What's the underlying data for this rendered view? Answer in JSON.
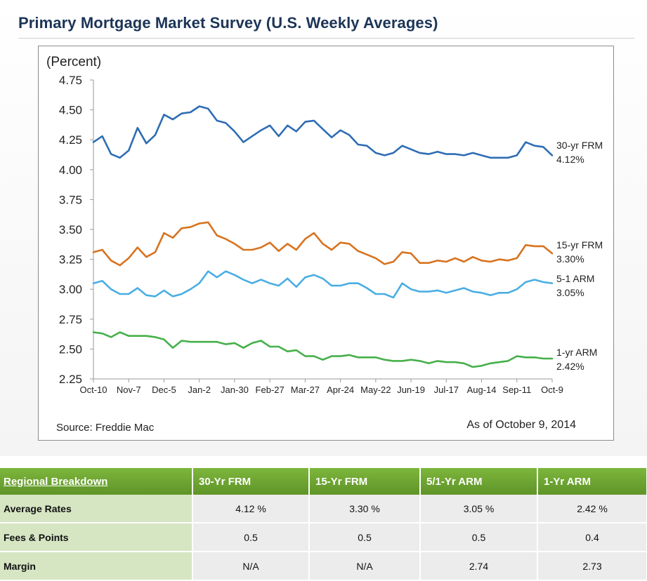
{
  "page": {
    "title": "Primary Mortgage Market Survey (U.S. Weekly Averages)"
  },
  "chart_data": {
    "type": "line",
    "ylabel": "(Percent)",
    "ylim": [
      2.25,
      4.75
    ],
    "yticks": [
      "4.75",
      "4.50",
      "4.25",
      "4.00",
      "3.75",
      "3.50",
      "3.25",
      "3.00",
      "2.75",
      "2.50",
      "2.25"
    ],
    "xticks": [
      "Oct-10",
      "Nov-7",
      "Dec-5",
      "Jan-2",
      "Jan-30",
      "Feb-27",
      "Mar-27",
      "Apr-24",
      "May-22",
      "Jun-19",
      "Jul-17",
      "Aug-14",
      "Sep-11",
      "Oct-9"
    ],
    "x_range": [
      "Oct-10",
      "Oct-9"
    ],
    "source": "Source: Freddie Mac",
    "as_of": "As of October 9, 2014",
    "grid": false,
    "series": [
      {
        "name": "30-yr FRM",
        "end_label": "4.12%",
        "color": "#2e6db4",
        "values": [
          4.23,
          4.28,
          4.13,
          4.1,
          4.16,
          4.35,
          4.22,
          4.29,
          4.46,
          4.42,
          4.47,
          4.48,
          4.53,
          4.51,
          4.41,
          4.39,
          4.32,
          4.23,
          4.28,
          4.33,
          4.37,
          4.28,
          4.37,
          4.32,
          4.4,
          4.41,
          4.34,
          4.27,
          4.33,
          4.29,
          4.21,
          4.2,
          4.14,
          4.12,
          4.14,
          4.2,
          4.17,
          4.14,
          4.13,
          4.15,
          4.13,
          4.13,
          4.12,
          4.14,
          4.12,
          4.1,
          4.1,
          4.1,
          4.12,
          4.23,
          4.2,
          4.19,
          4.12
        ]
      },
      {
        "name": "15-yr FRM",
        "end_label": "3.30%",
        "color": "#d8731f",
        "values": [
          3.31,
          3.33,
          3.24,
          3.2,
          3.26,
          3.35,
          3.27,
          3.31,
          3.47,
          3.43,
          3.51,
          3.52,
          3.55,
          3.56,
          3.45,
          3.42,
          3.38,
          3.33,
          3.33,
          3.35,
          3.39,
          3.32,
          3.38,
          3.33,
          3.42,
          3.47,
          3.38,
          3.33,
          3.39,
          3.38,
          3.32,
          3.29,
          3.26,
          3.21,
          3.23,
          3.31,
          3.3,
          3.22,
          3.22,
          3.24,
          3.23,
          3.26,
          3.23,
          3.27,
          3.24,
          3.23,
          3.25,
          3.24,
          3.26,
          3.37,
          3.36,
          3.36,
          3.3
        ]
      },
      {
        "name": "5-1 ARM",
        "end_label": "3.05%",
        "color": "#4aaee3",
        "values": [
          3.05,
          3.07,
          3.0,
          2.96,
          2.96,
          3.01,
          2.95,
          2.94,
          2.99,
          2.94,
          2.96,
          3.0,
          3.05,
          3.15,
          3.1,
          3.15,
          3.12,
          3.08,
          3.05,
          3.08,
          3.05,
          3.03,
          3.09,
          3.02,
          3.1,
          3.12,
          3.09,
          3.03,
          3.03,
          3.05,
          3.05,
          3.01,
          2.96,
          2.96,
          2.93,
          3.05,
          3.0,
          2.98,
          2.98,
          2.99,
          2.97,
          2.99,
          3.01,
          2.98,
          2.97,
          2.95,
          2.97,
          2.97,
          3.0,
          3.06,
          3.08,
          3.06,
          3.05
        ]
      },
      {
        "name": "1-yr ARM",
        "end_label": "2.42%",
        "color": "#46b04a",
        "values": [
          2.64,
          2.63,
          2.6,
          2.64,
          2.61,
          2.61,
          2.61,
          2.6,
          2.58,
          2.51,
          2.57,
          2.56,
          2.56,
          2.56,
          2.56,
          2.54,
          2.55,
          2.51,
          2.55,
          2.57,
          2.52,
          2.52,
          2.48,
          2.49,
          2.44,
          2.44,
          2.41,
          2.44,
          2.44,
          2.45,
          2.43,
          2.43,
          2.43,
          2.41,
          2.4,
          2.4,
          2.41,
          2.4,
          2.38,
          2.4,
          2.39,
          2.39,
          2.38,
          2.35,
          2.36,
          2.38,
          2.39,
          2.4,
          2.44,
          2.43,
          2.43,
          2.42,
          2.42
        ]
      }
    ]
  },
  "table": {
    "headers": [
      "Regional Breakdown",
      "30-Yr FRM",
      "15-Yr FRM",
      "5/1-Yr ARM",
      "1-Yr ARM"
    ],
    "rows": [
      {
        "label": "Average Rates",
        "cells": [
          "4.12 %",
          "3.30 %",
          "3.05 %",
          "2.42 %"
        ]
      },
      {
        "label": "Fees & Points",
        "cells": [
          "0.5",
          "0.5",
          "0.5",
          "0.4"
        ]
      },
      {
        "label": "Margin",
        "cells": [
          "N/A",
          "N/A",
          "2.74",
          "2.73"
        ]
      }
    ]
  }
}
